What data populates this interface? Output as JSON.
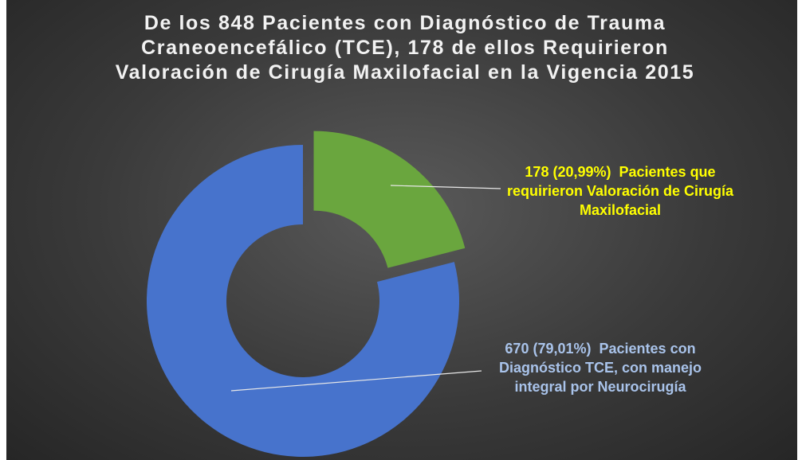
{
  "chart_data": {
    "type": "donut",
    "title": "De los 848 Pacientes con Diagnóstico de Trauma Craneoencefálico (TCE), 178 de ellos Requirieron Valoración de Cirugía Maxilofacial en la Vigencia 2015",
    "categories": [
      "Pacientes que requirieron Valoración de Cirugía Maxilofacial",
      "Pacientes con Diagnóstico TCE, con manejo integral por Neurocirugía"
    ],
    "values": [
      178,
      670
    ],
    "value_labels": [
      "178 (20,99%)",
      "670 (79,01%)"
    ],
    "colors": [
      "#6aa63e",
      "#4773cc"
    ]
  }
}
